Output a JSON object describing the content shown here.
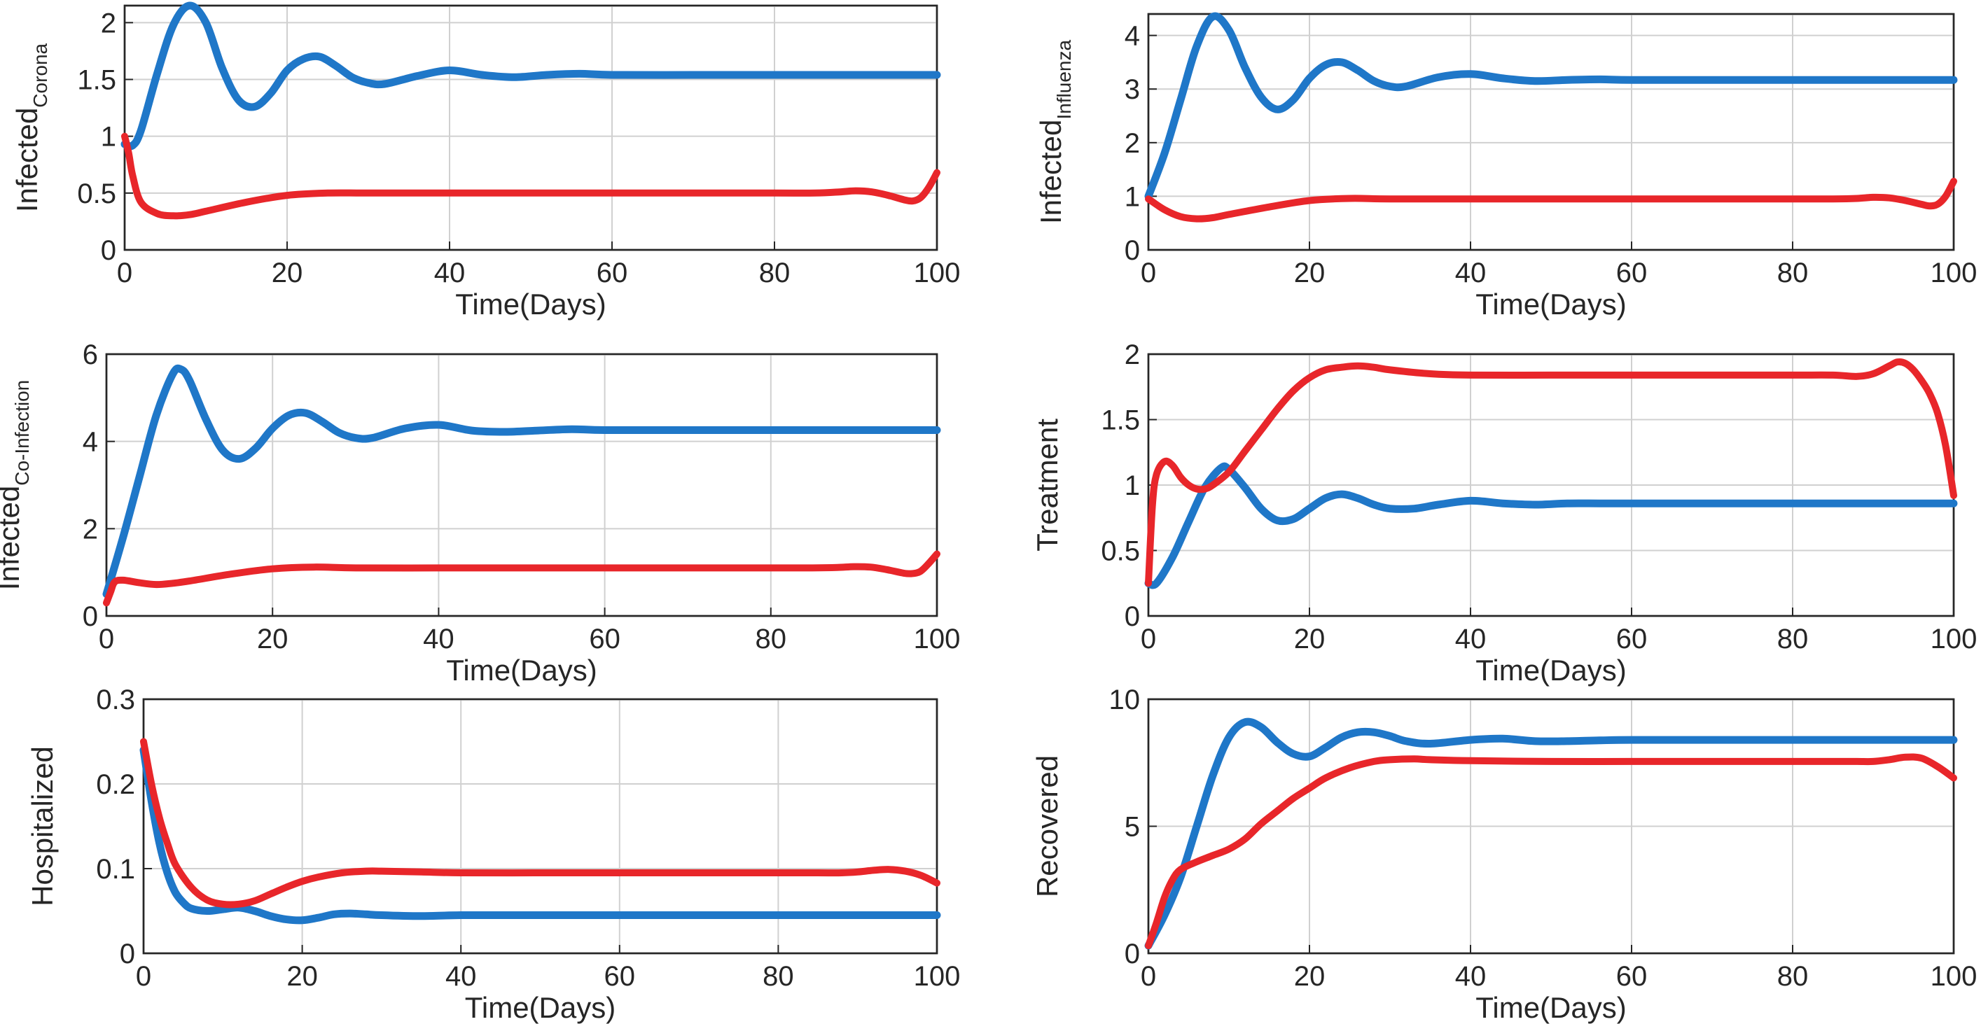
{
  "figure": {
    "colors": {
      "blue": "#1f77c8",
      "red": "#e8262a"
    }
  },
  "chart_data": [
    {
      "id": "corona",
      "type": "line",
      "title": "",
      "xlabel": "Time(Days)",
      "ylabel_main": "Infected",
      "ylabel_sub": "Corona",
      "xlim": [
        0,
        100
      ],
      "ylim": [
        0,
        2.15
      ],
      "xticks": [
        0,
        20,
        40,
        60,
        80,
        100
      ],
      "yticks": [
        0,
        0.5,
        1,
        1.5,
        2
      ],
      "ytick_labels": [
        "0",
        "0.5",
        "1",
        "1.5",
        "2"
      ],
      "grid": true,
      "series": [
        {
          "name": "blue",
          "color": "#1f77c8",
          "x": [
            0,
            1,
            2,
            4,
            6,
            8,
            10,
            12,
            14,
            16,
            18,
            20,
            22,
            24,
            26,
            28,
            30,
            32,
            36,
            40,
            44,
            48,
            52,
            56,
            60,
            70,
            80,
            90,
            100
          ],
          "y": [
            0.93,
            0.92,
            1.05,
            1.55,
            1.98,
            2.15,
            2.0,
            1.6,
            1.32,
            1.26,
            1.38,
            1.58,
            1.68,
            1.7,
            1.62,
            1.52,
            1.47,
            1.46,
            1.53,
            1.58,
            1.54,
            1.52,
            1.54,
            1.55,
            1.54,
            1.54,
            1.54,
            1.54,
            1.54
          ]
        },
        {
          "name": "red",
          "color": "#e8262a",
          "x": [
            0,
            0.5,
            1,
            2,
            4,
            6,
            8,
            10,
            15,
            20,
            25,
            30,
            40,
            50,
            60,
            70,
            80,
            85,
            88,
            90,
            92,
            94,
            96,
            97,
            98,
            99,
            100
          ],
          "y": [
            1.0,
            0.85,
            0.65,
            0.42,
            0.32,
            0.3,
            0.31,
            0.34,
            0.42,
            0.48,
            0.5,
            0.5,
            0.5,
            0.5,
            0.5,
            0.5,
            0.5,
            0.5,
            0.51,
            0.52,
            0.51,
            0.48,
            0.44,
            0.43,
            0.46,
            0.55,
            0.68
          ]
        }
      ]
    },
    {
      "id": "influenza",
      "type": "line",
      "title": "",
      "xlabel": "Time(Days)",
      "ylabel_main": "Infected",
      "ylabel_sub": "Influenza",
      "xlim": [
        0,
        100
      ],
      "ylim": [
        0,
        4.4
      ],
      "xticks": [
        0,
        20,
        40,
        60,
        80,
        100
      ],
      "yticks": [
        0,
        1,
        2,
        3,
        4
      ],
      "ytick_labels": [
        "0",
        "1",
        "2",
        "3",
        "4"
      ],
      "grid": true,
      "series": [
        {
          "name": "blue",
          "color": "#1f77c8",
          "x": [
            0,
            2,
            4,
            6,
            8,
            10,
            12,
            14,
            16,
            18,
            20,
            22,
            24,
            26,
            28,
            30,
            32,
            36,
            40,
            44,
            48,
            52,
            56,
            60,
            70,
            80,
            90,
            100
          ],
          "y": [
            1.0,
            1.8,
            2.8,
            3.8,
            4.35,
            4.1,
            3.4,
            2.85,
            2.62,
            2.8,
            3.2,
            3.45,
            3.5,
            3.35,
            3.15,
            3.05,
            3.05,
            3.22,
            3.28,
            3.2,
            3.15,
            3.17,
            3.18,
            3.17,
            3.17,
            3.17,
            3.17,
            3.17
          ]
        },
        {
          "name": "red",
          "color": "#e8262a",
          "x": [
            0,
            2,
            4,
            6,
            8,
            10,
            15,
            20,
            25,
            30,
            40,
            50,
            60,
            70,
            80,
            85,
            88,
            90,
            92,
            94,
            96,
            97,
            98,
            99,
            100
          ],
          "y": [
            0.95,
            0.75,
            0.62,
            0.58,
            0.6,
            0.66,
            0.8,
            0.92,
            0.96,
            0.95,
            0.95,
            0.95,
            0.95,
            0.95,
            0.95,
            0.95,
            0.96,
            0.98,
            0.97,
            0.92,
            0.85,
            0.82,
            0.85,
            1.0,
            1.28
          ]
        }
      ]
    },
    {
      "id": "coinfection",
      "type": "line",
      "title": "",
      "xlabel": "Time(Days)",
      "ylabel_main": "Infected",
      "ylabel_sub": "Co-Infection",
      "xlim": [
        0,
        100
      ],
      "ylim": [
        0,
        6
      ],
      "xticks": [
        0,
        20,
        40,
        60,
        80,
        100
      ],
      "yticks": [
        0,
        2,
        4,
        6
      ],
      "ytick_labels": [
        "0",
        "2",
        "4",
        "6"
      ],
      "grid": true,
      "series": [
        {
          "name": "blue",
          "color": "#1f77c8",
          "x": [
            0,
            2,
            4,
            6,
            8,
            9,
            10,
            12,
            14,
            16,
            18,
            20,
            22,
            24,
            26,
            28,
            30,
            32,
            36,
            40,
            44,
            48,
            52,
            56,
            60,
            70,
            80,
            90,
            100
          ],
          "y": [
            0.5,
            1.8,
            3.2,
            4.6,
            5.55,
            5.65,
            5.4,
            4.5,
            3.8,
            3.6,
            3.85,
            4.3,
            4.6,
            4.65,
            4.45,
            4.2,
            4.08,
            4.08,
            4.3,
            4.38,
            4.25,
            4.22,
            4.25,
            4.28,
            4.26,
            4.26,
            4.26,
            4.26,
            4.26
          ]
        },
        {
          "name": "red",
          "color": "#e8262a",
          "x": [
            0,
            0.5,
            1,
            2,
            4,
            6,
            8,
            10,
            15,
            20,
            25,
            30,
            40,
            50,
            60,
            70,
            80,
            85,
            88,
            90,
            92,
            94,
            96,
            97,
            98,
            99,
            100
          ],
          "y": [
            0.3,
            0.55,
            0.78,
            0.82,
            0.76,
            0.72,
            0.75,
            0.8,
            0.96,
            1.08,
            1.12,
            1.1,
            1.1,
            1.1,
            1.1,
            1.1,
            1.1,
            1.1,
            1.11,
            1.13,
            1.12,
            1.06,
            0.98,
            0.97,
            1.02,
            1.2,
            1.42
          ]
        }
      ]
    },
    {
      "id": "treatment",
      "type": "line",
      "title": "",
      "xlabel": "Time(Days)",
      "ylabel_main": "Treatment",
      "ylabel_sub": "",
      "xlim": [
        0,
        100
      ],
      "ylim": [
        0,
        2
      ],
      "xticks": [
        0,
        20,
        40,
        60,
        80,
        100
      ],
      "yticks": [
        0,
        0.5,
        1,
        1.5,
        2
      ],
      "ytick_labels": [
        "0",
        "0.5",
        "1",
        "1.5",
        "2"
      ],
      "grid": true,
      "series": [
        {
          "name": "blue",
          "color": "#1f77c8",
          "x": [
            0,
            1,
            3,
            5,
            7,
            9,
            10,
            12,
            14,
            16,
            18,
            20,
            22,
            24,
            26,
            28,
            30,
            33,
            36,
            40,
            44,
            48,
            52,
            56,
            60,
            70,
            80,
            90,
            100
          ],
          "y": [
            0.25,
            0.25,
            0.45,
            0.72,
            0.98,
            1.13,
            1.12,
            0.98,
            0.82,
            0.73,
            0.74,
            0.82,
            0.9,
            0.93,
            0.9,
            0.85,
            0.82,
            0.82,
            0.85,
            0.88,
            0.86,
            0.85,
            0.86,
            0.86,
            0.86,
            0.86,
            0.86,
            0.86,
            0.86
          ]
        },
        {
          "name": "red",
          "color": "#e8262a",
          "x": [
            0,
            0.5,
            1,
            2,
            3,
            4,
            5,
            6,
            7,
            8,
            10,
            12,
            14,
            16,
            18,
            20,
            22,
            24,
            26,
            28,
            30,
            35,
            40,
            50,
            60,
            70,
            80,
            85,
            88,
            90,
            92,
            93,
            94,
            95,
            96,
            97,
            98,
            99,
            100
          ],
          "y": [
            0.25,
            0.85,
            1.08,
            1.18,
            1.15,
            1.06,
            1.0,
            0.97,
            0.97,
            1.0,
            1.1,
            1.26,
            1.42,
            1.58,
            1.72,
            1.82,
            1.88,
            1.9,
            1.91,
            1.9,
            1.88,
            1.85,
            1.84,
            1.84,
            1.84,
            1.84,
            1.84,
            1.84,
            1.83,
            1.85,
            1.91,
            1.94,
            1.93,
            1.88,
            1.8,
            1.7,
            1.55,
            1.3,
            0.92
          ]
        }
      ]
    },
    {
      "id": "hospitalized",
      "type": "line",
      "title": "",
      "xlabel": "Time(Days)",
      "ylabel_main": "Hospitalized",
      "ylabel_sub": "",
      "xlim": [
        0,
        100
      ],
      "ylim": [
        0,
        0.3
      ],
      "xticks": [
        0,
        20,
        40,
        60,
        80,
        100
      ],
      "yticks": [
        0,
        0.1,
        0.2,
        0.3
      ],
      "ytick_labels": [
        "0",
        "0.1",
        "0.2",
        "0.3"
      ],
      "grid": true,
      "series": [
        {
          "name": "blue",
          "color": "#1f77c8",
          "x": [
            0,
            1,
            2,
            3,
            4,
            5,
            6,
            8,
            10,
            12,
            14,
            16,
            18,
            20,
            22,
            24,
            26,
            28,
            30,
            35,
            40,
            50,
            60,
            70,
            80,
            90,
            100
          ],
          "y": [
            0.24,
            0.18,
            0.13,
            0.095,
            0.072,
            0.06,
            0.053,
            0.05,
            0.052,
            0.054,
            0.05,
            0.044,
            0.04,
            0.039,
            0.042,
            0.046,
            0.047,
            0.046,
            0.045,
            0.044,
            0.045,
            0.045,
            0.045,
            0.045,
            0.045,
            0.045,
            0.045
          ]
        },
        {
          "name": "red",
          "color": "#e8262a",
          "x": [
            0,
            1,
            2,
            3,
            4,
            6,
            8,
            10,
            12,
            14,
            16,
            18,
            20,
            22,
            25,
            28,
            30,
            35,
            40,
            50,
            60,
            70,
            80,
            85,
            88,
            90,
            92,
            94,
            96,
            98,
            100
          ],
          "y": [
            0.25,
            0.2,
            0.16,
            0.13,
            0.105,
            0.078,
            0.063,
            0.058,
            0.058,
            0.062,
            0.07,
            0.078,
            0.085,
            0.09,
            0.095,
            0.097,
            0.097,
            0.096,
            0.095,
            0.095,
            0.095,
            0.095,
            0.095,
            0.095,
            0.095,
            0.096,
            0.098,
            0.099,
            0.097,
            0.092,
            0.083
          ]
        }
      ]
    },
    {
      "id": "recovered",
      "type": "line",
      "title": "",
      "xlabel": "Time(Days)",
      "ylabel_main": "Recovered",
      "ylabel_sub": "",
      "xlim": [
        0,
        100
      ],
      "ylim": [
        0,
        10
      ],
      "xticks": [
        0,
        20,
        40,
        60,
        80,
        100
      ],
      "yticks": [
        0,
        5,
        10
      ],
      "ytick_labels": [
        "0",
        "5",
        "10"
      ],
      "grid": true,
      "series": [
        {
          "name": "blue",
          "color": "#1f77c8",
          "x": [
            0,
            2,
            4,
            6,
            8,
            10,
            12,
            14,
            16,
            18,
            20,
            22,
            24,
            26,
            28,
            30,
            32,
            35,
            40,
            44,
            48,
            52,
            56,
            60,
            70,
            80,
            90,
            100
          ],
          "y": [
            0.3,
            1.5,
            3.0,
            5.0,
            7.0,
            8.5,
            9.1,
            8.9,
            8.3,
            7.85,
            7.75,
            8.1,
            8.5,
            8.7,
            8.7,
            8.55,
            8.35,
            8.25,
            8.4,
            8.45,
            8.35,
            8.35,
            8.38,
            8.4,
            8.4,
            8.4,
            8.4,
            8.4
          ]
        },
        {
          "name": "red",
          "color": "#e8262a",
          "x": [
            0,
            1,
            2,
            3,
            4,
            6,
            8,
            10,
            12,
            14,
            16,
            18,
            20,
            22,
            25,
            28,
            30,
            33,
            35,
            40,
            50,
            60,
            70,
            80,
            85,
            88,
            90,
            92,
            94,
            96,
            98,
            100
          ],
          "y": [
            0.3,
            1.2,
            2.2,
            2.9,
            3.3,
            3.6,
            3.85,
            4.1,
            4.5,
            5.1,
            5.6,
            6.1,
            6.5,
            6.9,
            7.3,
            7.55,
            7.62,
            7.65,
            7.62,
            7.58,
            7.55,
            7.55,
            7.55,
            7.55,
            7.55,
            7.55,
            7.55,
            7.62,
            7.72,
            7.68,
            7.35,
            6.9
          ]
        }
      ]
    }
  ]
}
